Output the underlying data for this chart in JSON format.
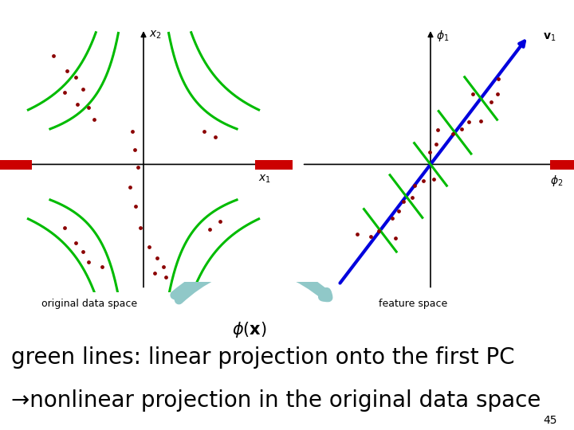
{
  "bg_color": "#ffffff",
  "dot_color": "#8b0000",
  "dot_size": 12,
  "green_color": "#00bb00",
  "blue_color": "#0000dd",
  "axis_color": "#000000",
  "red_bar_color": "#cc0000",
  "slide_number": "45",
  "label_original": "original data space",
  "label_feature": "feature space",
  "text_line1": "green lines: linear projection onto the first PC",
  "text_line2": "→nonlinear projection in the original data space",
  "text_color": "#000000",
  "text_fontsize": 20,
  "label_fontsize": 9,
  "slide_num_fontsize": 10
}
